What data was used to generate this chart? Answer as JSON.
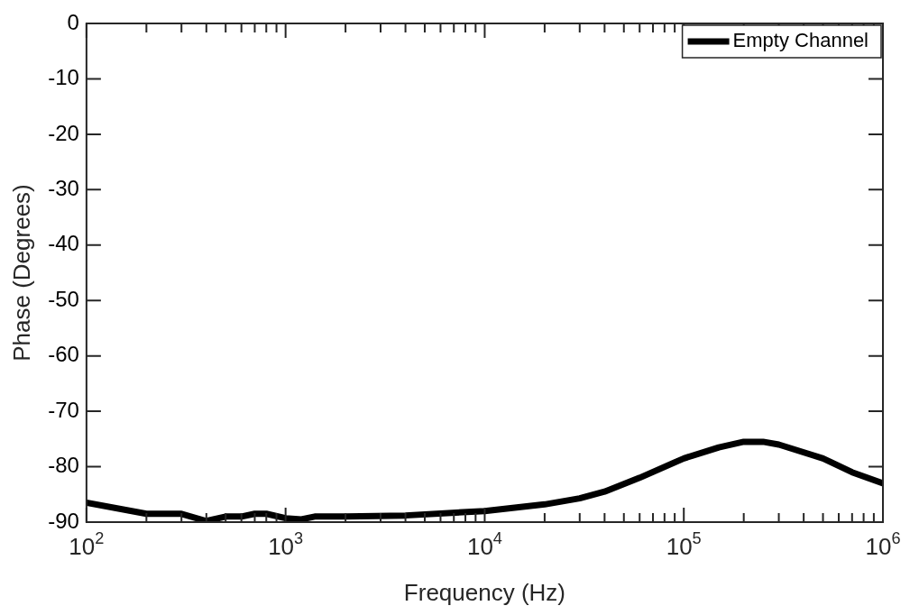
{
  "chart_data": {
    "type": "line",
    "xlabel": "Frequency (Hz)",
    "ylabel": "Phase (Degrees)",
    "x": [
      100,
      200,
      300,
      400,
      500,
      600,
      700,
      800,
      1000,
      1200,
      1400,
      2000,
      4000,
      10000,
      20000,
      30000,
      40000,
      60000,
      100000,
      150000,
      200000,
      250000,
      300000,
      500000,
      700000,
      1000000
    ],
    "series": [
      {
        "name": "Empty Channel",
        "color": "#000000",
        "values": [
          -86.5,
          -88.5,
          -88.5,
          -89.8,
          -89,
          -89,
          -88.5,
          -88.5,
          -89.3,
          -89.5,
          -89,
          -89,
          -88.8,
          -88,
          -86.8,
          -85.7,
          -84.5,
          -82,
          -78.5,
          -76.5,
          -75.5,
          -75.5,
          -76,
          -78.5,
          -81,
          -83
        ]
      }
    ],
    "log": "x",
    "xlim": [
      100,
      1000000
    ],
    "xticks": [
      {
        "value": 100,
        "label": "10$^{2}$"
      },
      {
        "value": 200,
        "label": null
      },
      {
        "value": 300,
        "label": null
      },
      {
        "value": 400,
        "label": null
      },
      {
        "value": 500,
        "label": null
      },
      {
        "value": 600,
        "label": null
      },
      {
        "value": 700,
        "label": null
      },
      {
        "value": 800,
        "label": null
      },
      {
        "value": 900,
        "label": null
      },
      {
        "value": 1000,
        "label": "10$^{3}$"
      },
      {
        "value": 2000,
        "label": null
      },
      {
        "value": 3000,
        "label": null
      },
      {
        "value": 4000,
        "label": null
      },
      {
        "value": 5000,
        "label": null
      },
      {
        "value": 6000,
        "label": null
      },
      {
        "value": 7000,
        "label": null
      },
      {
        "value": 8000,
        "label": null
      },
      {
        "value": 9000,
        "label": null
      },
      {
        "value": 10000,
        "label": "10$^{4}$"
      },
      {
        "value": 20000,
        "label": null
      },
      {
        "value": 30000,
        "label": null
      },
      {
        "value": 40000,
        "label": null
      },
      {
        "value": 50000,
        "label": null
      },
      {
        "value": 60000,
        "label": null
      },
      {
        "value": 70000,
        "label": null
      },
      {
        "value": 80000,
        "label": null
      },
      {
        "value": 90000,
        "label": null
      },
      {
        "value": 100000,
        "label": "10$^{5}$"
      },
      {
        "value": 200000,
        "label": null
      },
      {
        "value": 300000,
        "label": null
      },
      {
        "value": 400000,
        "label": null
      },
      {
        "value": 500000,
        "label": null
      },
      {
        "value": 600000,
        "label": null
      },
      {
        "value": 700000,
        "label": null
      },
      {
        "value": 800000,
        "label": null
      },
      {
        "value": 900000,
        "label": null
      },
      {
        "value": 1000000,
        "label": "10$^{6}$"
      }
    ],
    "ylim": [
      -90,
      0
    ],
    "yticks": [
      -90,
      -80,
      -70,
      -60,
      -50,
      -40,
      -30,
      -20,
      -10,
      0
    ],
    "grid": false,
    "legend": "top right",
    "line_style": "solid",
    "marker": "none"
  }
}
